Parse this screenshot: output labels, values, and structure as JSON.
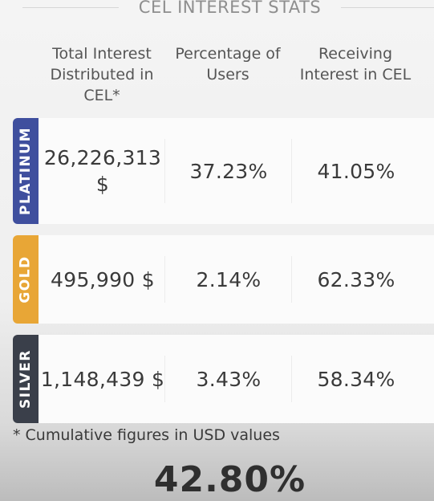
{
  "title": "CEL INTEREST STATS",
  "headers": [
    "Total Interest Distributed in CEL*",
    "Percentage of Users",
    "Receiving Interest in CEL"
  ],
  "colors": {
    "platinum": "#3f4f9e",
    "gold": "#e8a636",
    "silver": "#3a3f4a"
  },
  "rows": [
    {
      "tier": "PLATINUM",
      "total": "26,226,313 $",
      "pct_users": "37.23%",
      "receiving": "41.05%"
    },
    {
      "tier": "GOLD",
      "total": "495,990 $",
      "pct_users": "2.14%",
      "receiving": "62.33%"
    },
    {
      "tier": "SILVER",
      "total": "1,148,439 $",
      "pct_users": "3.43%",
      "receiving": "58.34%"
    }
  ],
  "footnote": "* Cumulative figures in USD values",
  "highlight": "42.80%"
}
